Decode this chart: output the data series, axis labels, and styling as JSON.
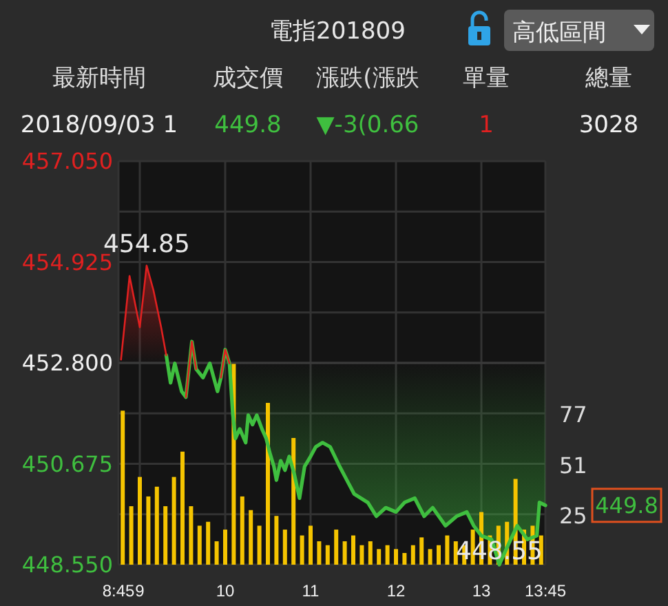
{
  "chart_data": {
    "type": "line",
    "title": "電指201809",
    "x": [
      8.78,
      8.88,
      9.0,
      9.08,
      9.16,
      9.25,
      9.31,
      9.36,
      9.41,
      9.49,
      9.54,
      9.61,
      9.66,
      9.74,
      9.82,
      9.91,
      9.95,
      10.0,
      10.05,
      10.09,
      10.12,
      10.17,
      10.24,
      10.27,
      10.32,
      10.37,
      10.43,
      10.48,
      10.52,
      10.57,
      10.6,
      10.65,
      10.7,
      10.75,
      10.81,
      10.87,
      10.93,
      11.0,
      11.06,
      11.14,
      11.23,
      11.34,
      11.51,
      11.67,
      11.77,
      11.88,
      12.0,
      12.1,
      12.22,
      12.33,
      12.43,
      12.58,
      12.71,
      12.83,
      12.91,
      13.0,
      13.12,
      13.21,
      13.32,
      13.42,
      13.54,
      13.65,
      13.68,
      13.75
    ],
    "xlim": [
      8.75,
      13.75
    ],
    "xticks": [
      {
        "value": 8.75,
        "label": "8:45"
      },
      9,
      10,
      11,
      12,
      13,
      {
        "value": 13.75,
        "label": "13:45"
      }
    ],
    "ylim": [
      448.55,
      457.05
    ],
    "yticks": [
      {
        "value": 448.55,
        "label": "448.550"
      },
      {
        "value": 449.6125,
        "label": null
      },
      {
        "value": 450.675,
        "label": "450.675"
      },
      {
        "value": 451.7375,
        "label": null
      },
      {
        "value": 452.8,
        "label": "452.800"
      },
      {
        "value": 453.8625,
        "label": null
      },
      {
        "value": 454.925,
        "label": "454.925"
      },
      {
        "value": 455.9875,
        "label": null
      },
      {
        "value": 457.05,
        "label": "457.050"
      }
    ],
    "y2lim": [
      0,
      207
    ],
    "y2ticks": [
      25,
      51,
      77
    ],
    "grid": true,
    "ref_lines": [
      {
        "axis": "y",
        "value": 452.8,
        "color": "#3a3a3a"
      }
    ],
    "series": [
      {
        "type": "bar",
        "axis": "y2",
        "color": "#f5c400",
        "x": [
          8.8,
          8.9,
          9.0,
          9.1,
          9.2,
          9.3,
          9.4,
          9.5,
          9.6,
          9.7,
          9.8,
          9.9,
          10.0,
          10.1,
          10.2,
          10.3,
          10.4,
          10.5,
          10.6,
          10.7,
          10.8,
          10.9,
          11.0,
          11.1,
          11.2,
          11.3,
          11.4,
          11.5,
          11.6,
          11.7,
          11.8,
          11.9,
          12.0,
          12.1,
          12.2,
          12.3,
          12.4,
          12.5,
          12.6,
          12.7,
          12.8,
          12.9,
          13.0,
          13.1,
          13.2,
          13.3,
          13.4,
          13.5,
          13.6,
          13.7
        ],
        "values": [
          79,
          30,
          45,
          35,
          40,
          30,
          45,
          58,
          30,
          20,
          22,
          12,
          18,
          103,
          35,
          28,
          20,
          83,
          25,
          18,
          65,
          15,
          20,
          12,
          10,
          18,
          12,
          15,
          10,
          12,
          8,
          10,
          8,
          6,
          10,
          14,
          8,
          10,
          15,
          12,
          10,
          18,
          27,
          15,
          20,
          22,
          44,
          18,
          20,
          15
        ]
      },
      {
        "color": "#3fbf3f",
        "values": [
          null,
          null,
          null,
          null,
          null,
          null,
          452.96,
          452.38,
          452.79,
          452.2,
          452.08,
          453.25,
          452.67,
          452.49,
          452.79,
          452.2,
          452.49,
          453.08,
          452.79,
          451.7,
          451.21,
          451.41,
          451.12,
          451.7,
          451.5,
          451.7,
          451.41,
          451.21,
          450.92,
          450.62,
          450.33,
          450.74,
          450.54,
          450.83,
          450.45,
          449.95,
          450.62,
          450.83,
          451.03,
          451.12,
          451.03,
          450.62,
          450.04,
          449.86,
          449.57,
          449.75,
          449.66,
          449.86,
          449.95,
          449.57,
          449.75,
          449.37,
          449.57,
          449.66,
          449.37,
          449.16,
          449.08,
          448.55,
          448.99,
          449.37,
          449.08,
          449.16,
          449.86,
          449.8
        ]
      },
      {
        "type": "line",
        "color": "#e02020",
        "values": [
          452.87,
          454.63,
          453.55,
          454.85,
          454.33,
          453.55,
          452.96,
          null,
          null,
          null,
          452.08,
          453.25,
          452.67,
          null,
          null,
          null,
          452.49,
          453.08,
          452.79,
          null,
          null,
          null,
          null,
          null,
          null,
          null,
          null,
          null,
          null,
          null,
          null,
          null,
          null,
          null,
          null,
          null,
          null,
          null,
          null,
          null,
          null,
          null,
          null,
          null,
          null,
          null,
          null,
          null,
          null,
          null,
          null,
          null,
          null,
          null,
          null,
          null,
          null,
          null,
          null,
          null,
          null,
          null,
          null,
          null
        ]
      }
    ],
    "annotations": [
      "最新時間",
      "成交價",
      "漲跌(漲跌",
      "單量",
      "總量",
      "2018/09/03 1",
      "449.8",
      "▼-3(0.66",
      "1",
      "3028",
      "高低區間",
      {
        "text": "454.85",
        "x": 9.08,
        "y": 454.85
      },
      {
        "text": "448.55",
        "x": 13.21,
        "y": 448.55
      },
      {
        "text": "449.8",
        "x": 13.75,
        "y": 449.8
      }
    ]
  }
}
